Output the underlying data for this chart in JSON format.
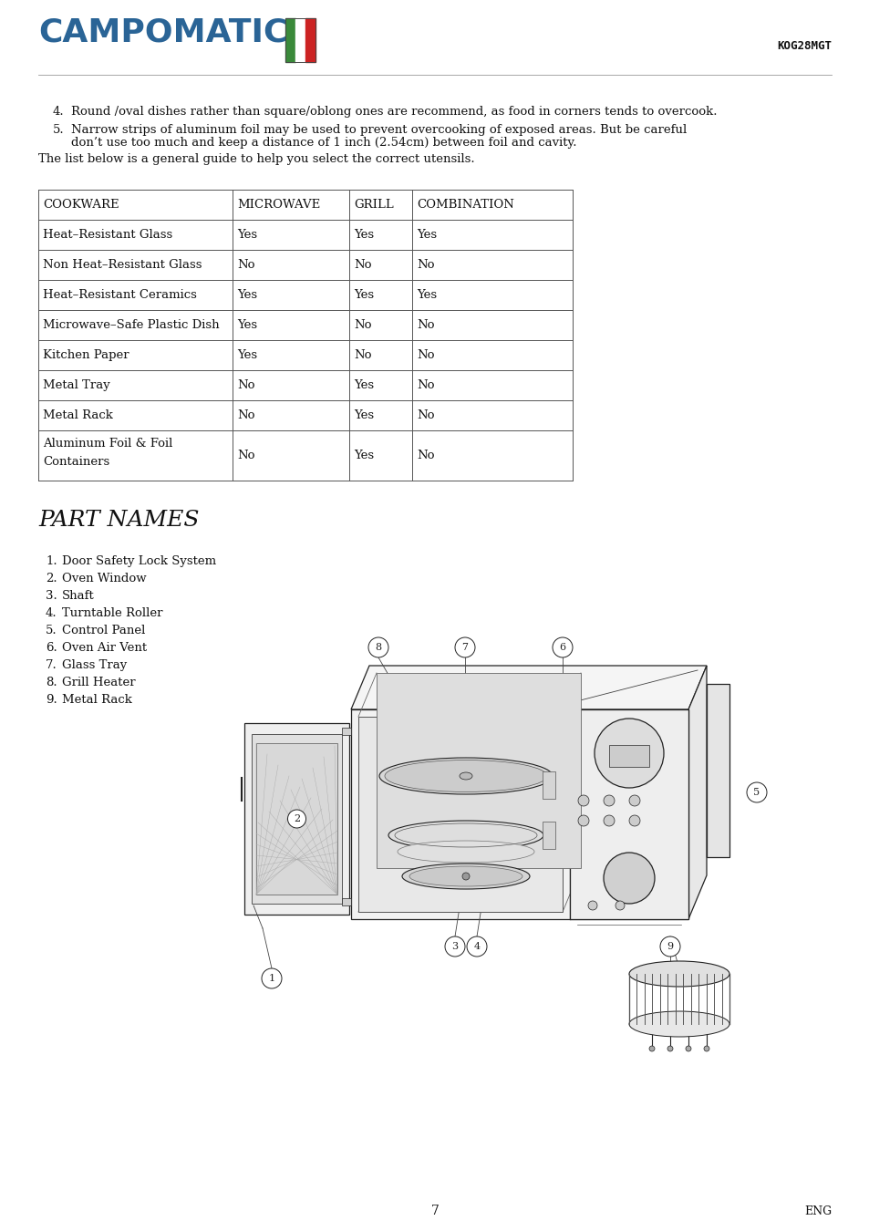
{
  "bg_color": "#ffffff",
  "logo_text": "CAMPOMATIC",
  "logo_color": "#2a6496",
  "logo_flag_green": "#3a8a3a",
  "logo_flag_white": "#ffffff",
  "logo_flag_red": "#cc2222",
  "model_text": "KOG28MGT",
  "model_color": "#111111",
  "body_text_color": "#111111",
  "point4": "Round /oval dishes rather than square/oblong ones are recommend, as food in corners tends to overcook.",
  "point5_line1": "Narrow strips of aluminum foil may be used to prevent overcooking of exposed areas. But be careful",
  "point5_line2": "don’t use too much and keep a distance of 1 inch (2.54cm) between foil and cavity.",
  "list_intro": "The list below is a general guide to help you select the correct utensils.",
  "table_headers": [
    "COOKWARE",
    "MICROWAVE",
    "GRILL",
    "COMBINATION"
  ],
  "table_rows": [
    [
      "Heat–Resistant Glass",
      "Yes",
      "Yes",
      "Yes"
    ],
    [
      "Non Heat–Resistant Glass",
      "No",
      "No",
      "No"
    ],
    [
      "Heat–Resistant Ceramics",
      "Yes",
      "Yes",
      "Yes"
    ],
    [
      "Microwave–Safe Plastic Dish",
      "Yes",
      "No",
      "No"
    ],
    [
      "Kitchen Paper",
      "Yes",
      "No",
      "No"
    ],
    [
      "Metal Tray",
      "No",
      "Yes",
      "No"
    ],
    [
      "Metal Rack",
      "No",
      "Yes",
      "No"
    ],
    [
      "Aluminum Foil & Foil\nContainers",
      "No",
      "Yes",
      "No"
    ]
  ],
  "section_title": "PART NAMES",
  "part_names": [
    "Door Safety Lock System",
    "Oven Window",
    "Shaft",
    "Turntable Roller",
    "Control Panel",
    "Oven Air Vent",
    "Glass Tray",
    "Grill Heater",
    "Metal Rack"
  ],
  "page_number": "7",
  "page_lang": "ENG"
}
